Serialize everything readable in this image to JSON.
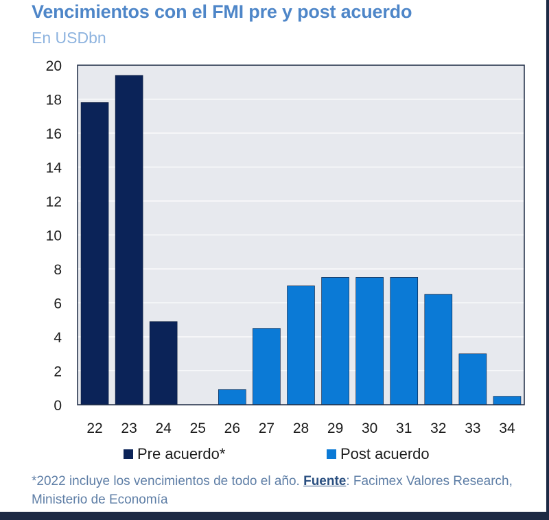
{
  "title": "Vencimientos con el FMI pre y post acuerdo",
  "subtitle": "En USDbn",
  "colors": {
    "pre": "#0b2358",
    "post": "#0b7ad6",
    "plot_bg": "#e7e9ee",
    "grid": "#ffffff",
    "axis": "#1d2a44"
  },
  "legend": {
    "pre_label": "Pre acuerdo*",
    "post_label": "Post acuerdo"
  },
  "footnote": {
    "before": "*2022 incluye los vencimientos de todo el año. ",
    "source_label": "Fuente",
    "after": ": Facimex Valores Research, Ministerio de Economía"
  },
  "chart_data": {
    "type": "bar",
    "categories": [
      "22",
      "23",
      "24",
      "25",
      "26",
      "27",
      "28",
      "29",
      "30",
      "31",
      "32",
      "33",
      "34"
    ],
    "series": [
      {
        "name": "Pre acuerdo*",
        "color": "#0b2358",
        "values": [
          17.8,
          19.4,
          4.9,
          0,
          null,
          null,
          null,
          null,
          null,
          null,
          null,
          null,
          null
        ]
      },
      {
        "name": "Post acuerdo",
        "color": "#0b7ad6",
        "values": [
          null,
          null,
          null,
          null,
          0.9,
          4.5,
          7.0,
          7.5,
          7.5,
          7.5,
          6.5,
          3.0,
          0.5
        ]
      }
    ],
    "yticks": [
      0,
      2,
      4,
      6,
      8,
      10,
      12,
      14,
      16,
      18,
      20
    ],
    "ylim": [
      0,
      20
    ],
    "grid": true
  }
}
